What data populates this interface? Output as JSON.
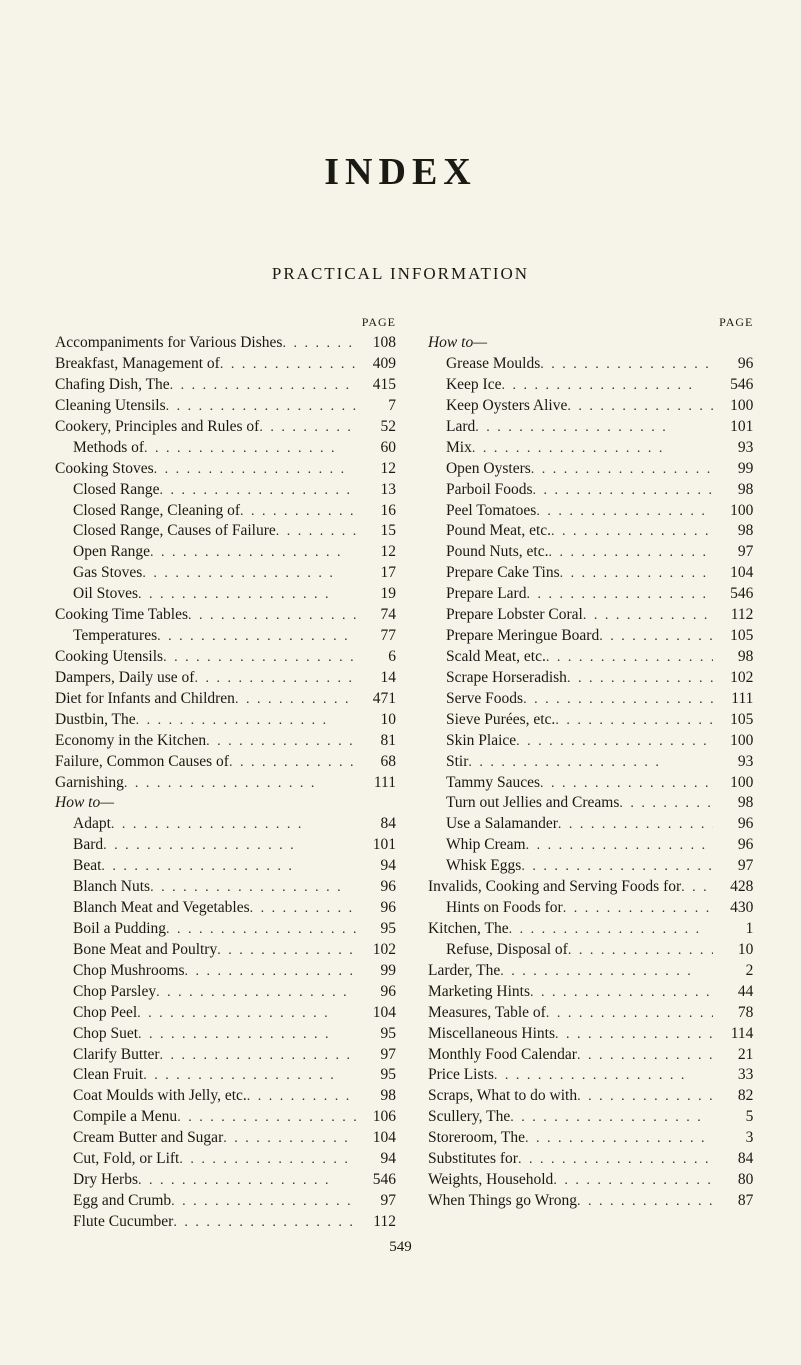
{
  "title": "INDEX",
  "subtitle": "PRACTICAL INFORMATION",
  "page_label": "PAGE",
  "footer_page": "549",
  "left": [
    {
      "t": "Accompaniments for Various Dishes",
      "p": "108"
    },
    {
      "t": "Breakfast, Management of",
      "p": "409"
    },
    {
      "t": "Chafing Dish, The",
      "p": "415"
    },
    {
      "t": "Cleaning Utensils",
      "p": "7"
    },
    {
      "t": "Cookery, Principles and Rules of",
      "p": "52"
    },
    {
      "t": "Methods of",
      "p": "60",
      "indent": true
    },
    {
      "t": "Cooking Stoves",
      "p": "12"
    },
    {
      "t": "Closed Range",
      "p": "13",
      "indent": true
    },
    {
      "t": "Closed Range, Cleaning of",
      "p": "16",
      "indent": true
    },
    {
      "t": "Closed Range, Causes of Failure",
      "p": "15",
      "indent": true
    },
    {
      "t": "Open Range",
      "p": "12",
      "indent": true
    },
    {
      "t": "Gas Stoves",
      "p": "17",
      "indent": true
    },
    {
      "t": "Oil Stoves",
      "p": "19",
      "indent": true
    },
    {
      "t": "Cooking Time Tables",
      "p": "74"
    },
    {
      "t": "Temperatures",
      "p": "77",
      "indent": true
    },
    {
      "t": "Cooking Utensils",
      "p": "6"
    },
    {
      "t": "Dampers, Daily use of",
      "p": "14"
    },
    {
      "t": "Diet for Infants and Children",
      "p": "471"
    },
    {
      "t": "Dustbin, The",
      "p": "10"
    },
    {
      "t": "Economy in the Kitchen",
      "p": "81"
    },
    {
      "t": "Failure, Common Causes of",
      "p": "68"
    },
    {
      "t": "Garnishing",
      "p": "111"
    },
    {
      "t": "How to—",
      "heading": true
    },
    {
      "t": "Adapt",
      "p": "84",
      "indent": true
    },
    {
      "t": "Bard",
      "p": "101",
      "indent": true
    },
    {
      "t": "Beat",
      "p": "94",
      "indent": true
    },
    {
      "t": "Blanch Nuts",
      "p": "96",
      "indent": true
    },
    {
      "t": "Blanch Meat and Vegetables",
      "p": "96",
      "indent": true
    },
    {
      "t": "Boil a Pudding",
      "p": "95",
      "indent": true
    },
    {
      "t": "Bone Meat and Poultry",
      "p": "102",
      "indent": true
    },
    {
      "t": "Chop Mushrooms",
      "p": "99",
      "indent": true
    },
    {
      "t": "Chop Parsley",
      "p": "96",
      "indent": true
    },
    {
      "t": "Chop Peel",
      "p": "104",
      "indent": true
    },
    {
      "t": "Chop Suet",
      "p": "95",
      "indent": true
    },
    {
      "t": "Clarify Butter",
      "p": "97",
      "indent": true
    },
    {
      "t": "Clean Fruit",
      "p": "95",
      "indent": true
    },
    {
      "t": "Coat Moulds with Jelly, etc.",
      "p": "98",
      "indent": true
    },
    {
      "t": "Compile a Menu",
      "p": "106",
      "indent": true
    },
    {
      "t": "Cream Butter and Sugar",
      "p": "104",
      "indent": true
    },
    {
      "t": "Cut, Fold, or Lift",
      "p": "94",
      "indent": true
    },
    {
      "t": "Dry Herbs",
      "p": "546",
      "indent": true
    },
    {
      "t": "Egg and Crumb",
      "p": "97",
      "indent": true
    },
    {
      "t": "Flute Cucumber",
      "p": "112",
      "indent": true
    }
  ],
  "right": [
    {
      "t": "How to—",
      "heading": true
    },
    {
      "t": "Grease Moulds",
      "p": "96",
      "indent": true
    },
    {
      "t": "Keep Ice",
      "p": "546",
      "indent": true
    },
    {
      "t": "Keep Oysters Alive",
      "p": "100",
      "indent": true
    },
    {
      "t": "Lard",
      "p": "101",
      "indent": true
    },
    {
      "t": "Mix",
      "p": "93",
      "indent": true
    },
    {
      "t": "Open Oysters",
      "p": "99",
      "indent": true
    },
    {
      "t": "Parboil Foods",
      "p": "98",
      "indent": true
    },
    {
      "t": "Peel Tomatoes",
      "p": "100",
      "indent": true
    },
    {
      "t": "Pound Meat, etc.",
      "p": "98",
      "indent": true
    },
    {
      "t": "Pound Nuts, etc.",
      "p": "97",
      "indent": true
    },
    {
      "t": "Prepare Cake Tins",
      "p": "104",
      "indent": true
    },
    {
      "t": "Prepare Lard",
      "p": "546",
      "indent": true
    },
    {
      "t": "Prepare Lobster Coral",
      "p": "112",
      "indent": true
    },
    {
      "t": "Prepare Meringue Board",
      "p": "105",
      "indent": true
    },
    {
      "t": "Scald Meat, etc.",
      "p": "98",
      "indent": true
    },
    {
      "t": "Scrape Horseradish",
      "p": "102",
      "indent": true
    },
    {
      "t": "Serve Foods",
      "p": "111",
      "indent": true
    },
    {
      "t": "Sieve Purées, etc.",
      "p": "105",
      "indent": true
    },
    {
      "t": "Skin Plaice",
      "p": "100",
      "indent": true
    },
    {
      "t": "Stir",
      "p": "93",
      "indent": true
    },
    {
      "t": "Tammy Sauces",
      "p": "100",
      "indent": true
    },
    {
      "t": "Turn out Jellies and Creams",
      "p": "98",
      "indent": true
    },
    {
      "t": "Use a Salamander",
      "p": "96",
      "indent": true
    },
    {
      "t": "Whip Cream",
      "p": "96",
      "indent": true
    },
    {
      "t": "Whisk Eggs",
      "p": "97",
      "indent": true
    },
    {
      "t": "Invalids, Cooking and Serving Foods for",
      "p": "428"
    },
    {
      "t": "Hints on Foods for",
      "p": "430",
      "indent": true
    },
    {
      "t": "Kitchen, The",
      "p": "1"
    },
    {
      "t": "Refuse, Disposal of",
      "p": "10",
      "indent": true
    },
    {
      "t": "Larder, The",
      "p": "2"
    },
    {
      "t": "Marketing Hints",
      "p": "44"
    },
    {
      "t": "Measures, Table of",
      "p": "78"
    },
    {
      "t": "Miscellaneous Hints",
      "p": "114"
    },
    {
      "t": "Monthly Food Calendar",
      "p": "21"
    },
    {
      "t": "Price Lists",
      "p": "33"
    },
    {
      "t": "Scraps, What to do with",
      "p": "82"
    },
    {
      "t": "Scullery, The",
      "p": "5"
    },
    {
      "t": "Storeroom, The",
      "p": "3"
    },
    {
      "t": "Substitutes for",
      "p": "84"
    },
    {
      "t": "Weights, Household",
      "p": "80"
    },
    {
      "t": "When Things go Wrong",
      "p": "87"
    }
  ]
}
